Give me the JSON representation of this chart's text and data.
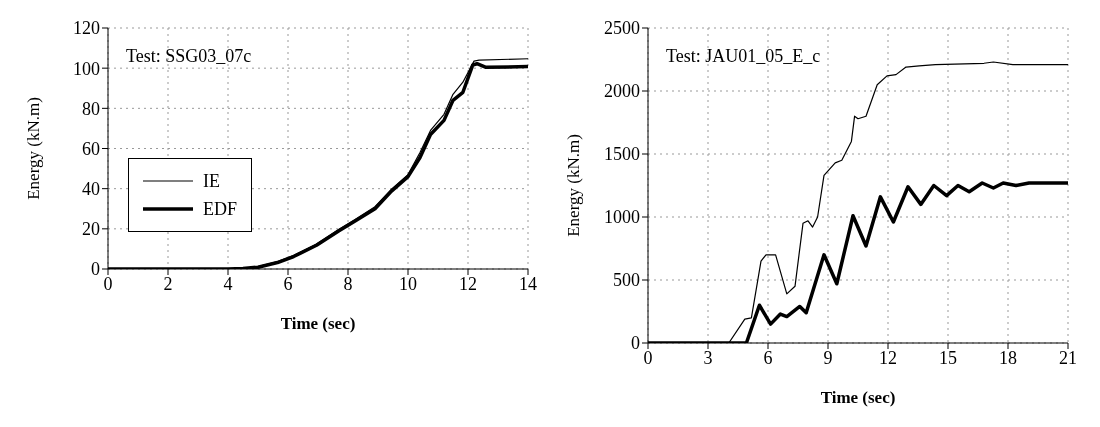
{
  "chart_data": [
    {
      "type": "line",
      "xlabel": "Time (sec)",
      "ylabel": "Energy (kN.m)",
      "annotations": [
        "Test: SSG03_07c"
      ],
      "xlim": [
        0,
        14
      ],
      "xticks": [
        0,
        2,
        4,
        6,
        8,
        10,
        12,
        14
      ],
      "ylim": [
        0,
        120
      ],
      "yticks": [
        0,
        20,
        40,
        60,
        80,
        100,
        120
      ],
      "grid": true,
      "legend": "left",
      "series": [
        {
          "name": "IE",
          "color": "#000000",
          "x": [
            0,
            2,
            4,
            4.5,
            5,
            5.65,
            6.19,
            6.95,
            7.7,
            8.25,
            8.9,
            9.45,
            10,
            10.4,
            10.75,
            11.2,
            11.5,
            11.83,
            12.2,
            12.37,
            14
          ],
          "values": [
            0,
            0,
            0,
            0.3,
            1.2,
            3.7,
            6.8,
            12.4,
            19.8,
            24.8,
            31,
            39.7,
            47,
            58,
            69,
            77,
            87,
            93,
            103.5,
            104,
            104.7
          ]
        },
        {
          "name": "EDF",
          "color": "#000000",
          "x": [
            0,
            2,
            4,
            4.5,
            5,
            5.65,
            6.19,
            6.95,
            7.7,
            8.25,
            8.9,
            9.45,
            10,
            10.4,
            10.75,
            11.2,
            11.5,
            11.83,
            12.16,
            12.3,
            12.6,
            14
          ],
          "values": [
            0,
            0,
            0,
            0.2,
            0.9,
            3.2,
            6.2,
            11.8,
            19,
            24,
            30,
            38.8,
            46,
            55.5,
            67,
            74,
            84,
            88,
            101.6,
            102.2,
            100.4,
            100.8
          ]
        }
      ]
    },
    {
      "type": "line",
      "xlabel": "Time (sec)",
      "ylabel": "Energy (kN.m)",
      "annotations": [
        "Test: JAU01_05_E_c"
      ],
      "xlim": [
        0,
        21
      ],
      "xticks": [
        0,
        3,
        6,
        9,
        12,
        15,
        18,
        21
      ],
      "ylim": [
        0,
        2500
      ],
      "yticks": [
        0,
        500,
        1000,
        1500,
        2000,
        2500
      ],
      "grid": true,
      "series": [
        {
          "color": "#000000",
          "x": [
            0,
            4.04,
            4.84,
            5.17,
            5.65,
            5.9,
            6.38,
            6.94,
            7.35,
            7.75,
            8.0,
            8.23,
            8.48,
            8.8,
            9.36,
            9.69,
            10.17,
            10.33,
            10.5,
            10.9,
            11.46,
            11.95,
            12.4,
            12.9,
            13.56,
            14.37,
            16.8,
            17.27,
            18.24,
            21
          ],
          "values": [
            0,
            0,
            190,
            200,
            650,
            700,
            700,
            390,
            450,
            950,
            970,
            920,
            1000,
            1330,
            1430,
            1450,
            1600,
            1800,
            1780,
            1800,
            2050,
            2120,
            2130,
            2190,
            2200,
            2210,
            2220,
            2230,
            2210,
            2210
          ]
        },
        {
          "color": "#000000",
          "x": [
            0,
            4.92,
            5.57,
            6.13,
            6.62,
            6.94,
            7.59,
            7.91,
            8.8,
            9.44,
            10.25,
            10.9,
            11.62,
            12.27,
            13.0,
            13.64,
            14.29,
            14.93,
            15.5,
            16.06,
            16.71,
            17.27,
            17.76,
            18.4,
            19.05,
            21
          ],
          "values": [
            0,
            0,
            300,
            150,
            230,
            210,
            290,
            240,
            700,
            470,
            1010,
            770,
            1160,
            960,
            1240,
            1100,
            1250,
            1170,
            1250,
            1200,
            1270,
            1230,
            1270,
            1250,
            1270,
            1270
          ]
        }
      ]
    }
  ]
}
